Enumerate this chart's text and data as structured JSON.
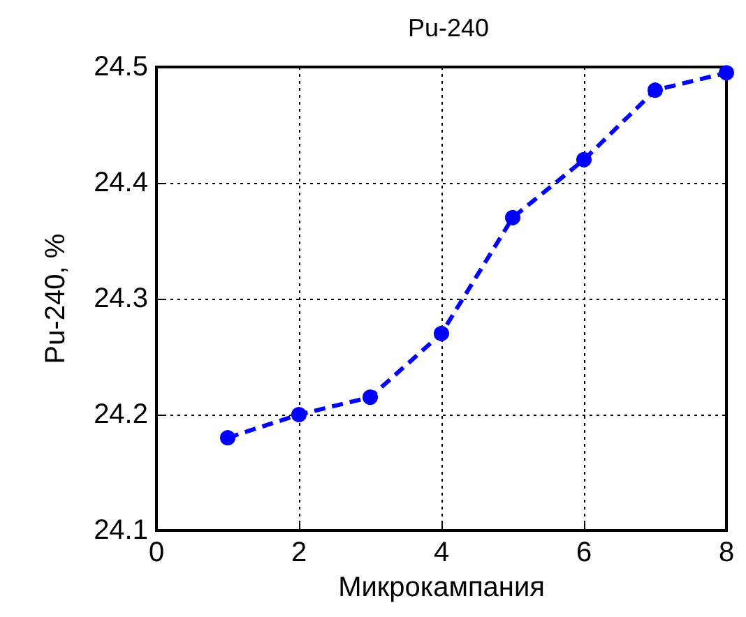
{
  "chart_data": {
    "type": "line",
    "title": "Pu-240",
    "xlabel": "Микрокампания",
    "ylabel": "Pu-240, %",
    "x": [
      1,
      2,
      3,
      4,
      5,
      6,
      7,
      8
    ],
    "series": [
      {
        "color": "#0000ff",
        "values": [
          24.18,
          24.2,
          24.215,
          24.27,
          24.37,
          24.42,
          24.48,
          24.495
        ]
      }
    ],
    "xlim": [
      0,
      8
    ],
    "xticks": [
      0,
      2,
      4,
      6,
      8
    ],
    "ylim": [
      24.1,
      24.5
    ],
    "yticks": [
      24.1,
      24.2,
      24.3,
      24.4,
      24.5
    ],
    "grid": true,
    "marker": "circle",
    "line_style": "dashed"
  }
}
